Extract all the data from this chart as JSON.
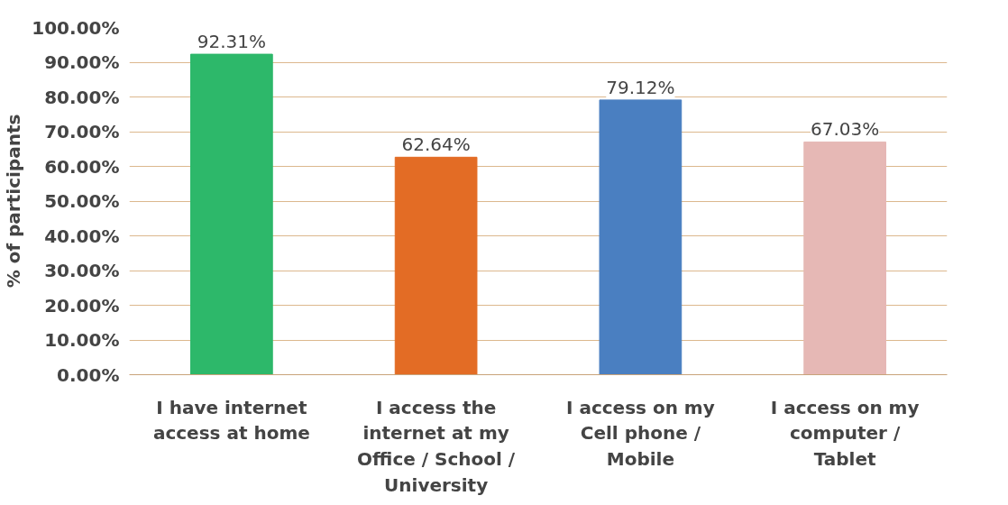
{
  "chart_data": {
    "type": "bar",
    "ylabel": "% of participants",
    "categories": [
      "I have internet\naccess at home",
      "I access the\ninternet at my\nOffice / School /\nUniversity",
      "I access on my\nCell phone /\nMobile",
      "I access on my\ncomputer /\nTablet"
    ],
    "values": [
      92.31,
      62.64,
      79.12,
      67.03
    ],
    "colors": [
      "#2db86a",
      "#e36c25",
      "#4a7fc1",
      "#e6b8b5"
    ],
    "value_labels": [
      "92.31%",
      "62.64%",
      "79.12%",
      "67.03%"
    ],
    "ylim": [
      0,
      100
    ],
    "yticks": [
      {
        "value": 0,
        "label": "0.00%"
      },
      {
        "value": 10,
        "label": "10.00%"
      },
      {
        "value": 20,
        "label": "20.00%"
      },
      {
        "value": 30,
        "label": "30.00%"
      },
      {
        "value": 40,
        "label": "40.00%"
      },
      {
        "value": 50,
        "label": "50.00%"
      },
      {
        "value": 60,
        "label": "60.00%"
      },
      {
        "value": 70,
        "label": "70.00%"
      },
      {
        "value": 80,
        "label": "80.00%"
      },
      {
        "value": 90,
        "label": "90.00%"
      },
      {
        "value": 100,
        "label": "100.00%"
      }
    ],
    "grid": "y"
  }
}
